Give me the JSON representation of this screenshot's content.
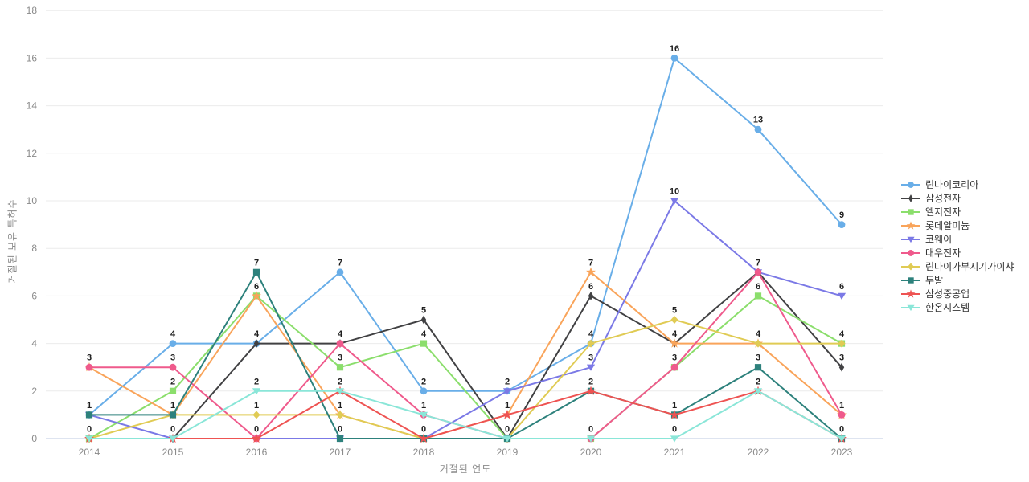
{
  "chart_data": {
    "type": "line",
    "title": "",
    "xlabel": "거절된 연도",
    "ylabel": "거절된 보유 특허수",
    "x": [
      2014,
      2015,
      2016,
      2017,
      2018,
      2019,
      2020,
      2021,
      2022,
      2023
    ],
    "ylim": [
      0,
      18
    ],
    "yticks": [
      0,
      2,
      4,
      6,
      8,
      10,
      12,
      14,
      16,
      18
    ],
    "grid": true,
    "legend_position": "right",
    "point_labels_shown": true,
    "series": [
      {
        "name": "린나이코리아",
        "color": "#69aee8",
        "marker": "circle",
        "values": [
          1,
          4,
          4,
          7,
          2,
          2,
          4,
          16,
          13,
          9
        ]
      },
      {
        "name": "삼성전자",
        "color": "#414143",
        "marker": "thin-diamond",
        "values": [
          0,
          0,
          4,
          4,
          5,
          0,
          6,
          4,
          7,
          3
        ]
      },
      {
        "name": "엘지전자",
        "color": "#8bde6c",
        "marker": "square",
        "values": [
          0,
          2,
          6,
          3,
          4,
          0,
          0,
          3,
          6,
          4
        ]
      },
      {
        "name": "롯데알미늄",
        "color": "#f9a45a",
        "marker": "star",
        "values": [
          3,
          1,
          6,
          1,
          0,
          1,
          7,
          4,
          4,
          1
        ]
      },
      {
        "name": "코웨이",
        "color": "#7b79e6",
        "marker": "triangle-down",
        "values": [
          1,
          0,
          0,
          0,
          0,
          2,
          3,
          10,
          7,
          6
        ]
      },
      {
        "name": "대우전자",
        "color": "#ef5a8c",
        "marker": "circle",
        "values": [
          3,
          3,
          0,
          4,
          1,
          0,
          0,
          3,
          7,
          1
        ]
      },
      {
        "name": "린나이가부시기가이샤",
        "color": "#e0cb54",
        "marker": "diamond",
        "values": [
          0,
          1,
          1,
          1,
          0,
          0,
          4,
          5,
          4,
          4
        ]
      },
      {
        "name": "두발",
        "color": "#2d817c",
        "marker": "square",
        "values": [
          1,
          1,
          7,
          0,
          0,
          0,
          2,
          1,
          3,
          0
        ]
      },
      {
        "name": "삼성중공업",
        "color": "#ee5352",
        "marker": "star",
        "values": [
          0,
          0,
          0,
          2,
          0,
          1,
          2,
          1,
          2,
          0
        ]
      },
      {
        "name": "한온시스템",
        "color": "#8ae6d8",
        "marker": "triangle-down",
        "values": [
          0,
          0,
          2,
          2,
          1,
          0,
          0,
          0,
          2,
          0
        ]
      }
    ],
    "style": {
      "grid_color": "#ebebeb",
      "axis_line_color": "#c9d3e6",
      "tick_label_color": "#8a8a8a",
      "data_label_color": "#1f1f1f",
      "background": "#ffffff"
    }
  }
}
